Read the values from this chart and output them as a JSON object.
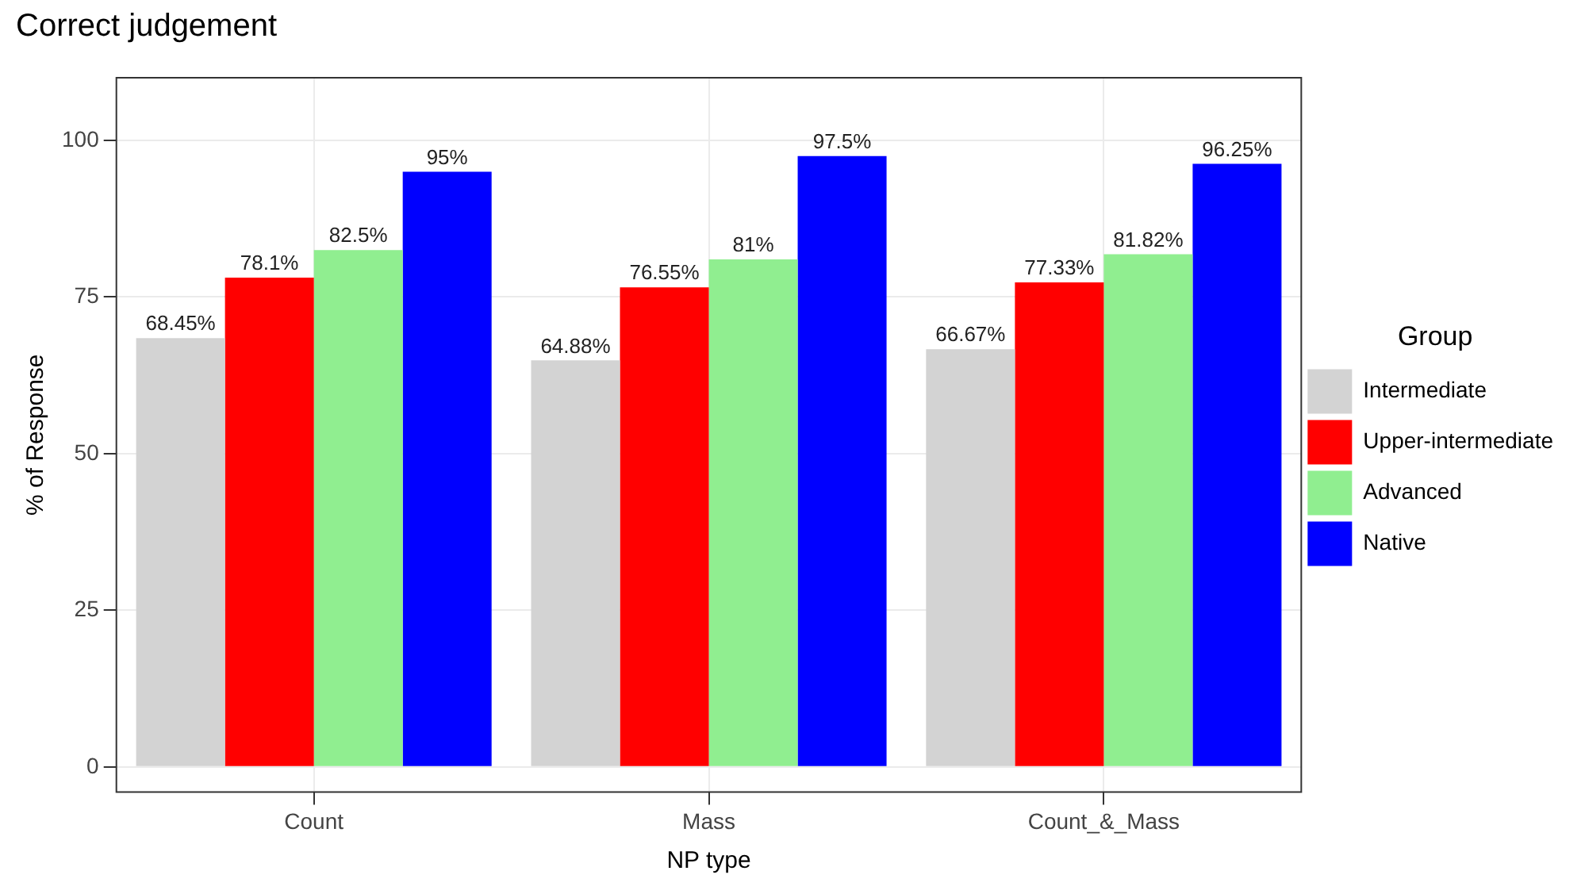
{
  "chart_data": {
    "type": "bar",
    "title": "Correct judgement",
    "xlabel": "NP type",
    "ylabel": "% of Response",
    "legend_title": "Group",
    "categories": [
      "Count",
      "Mass",
      "Count_&_Mass"
    ],
    "series": [
      {
        "name": "Intermediate",
        "color": "#d3d3d3",
        "values": [
          68.45,
          64.88,
          66.67
        ],
        "value_labels": [
          "68.45%",
          "64.88%",
          "66.67%"
        ]
      },
      {
        "name": "Upper-intermediate",
        "color": "#ff0000",
        "values": [
          78.1,
          76.55,
          77.33
        ],
        "value_labels": [
          "78.1%",
          "76.55%",
          "77.33%"
        ]
      },
      {
        "name": "Advanced",
        "color": "#90ee90",
        "values": [
          82.5,
          81,
          81.82
        ],
        "value_labels": [
          "82.5%",
          "81%",
          "81.82%"
        ]
      },
      {
        "name": "Native",
        "color": "#0000ff",
        "values": [
          95,
          97.5,
          96.25
        ],
        "value_labels": [
          "95%",
          "97.5%",
          "96.25%"
        ]
      }
    ],
    "ylim": [
      -4,
      110
    ],
    "yticks": [
      0,
      25,
      50,
      75,
      100
    ],
    "grid": true,
    "legend": "right"
  }
}
